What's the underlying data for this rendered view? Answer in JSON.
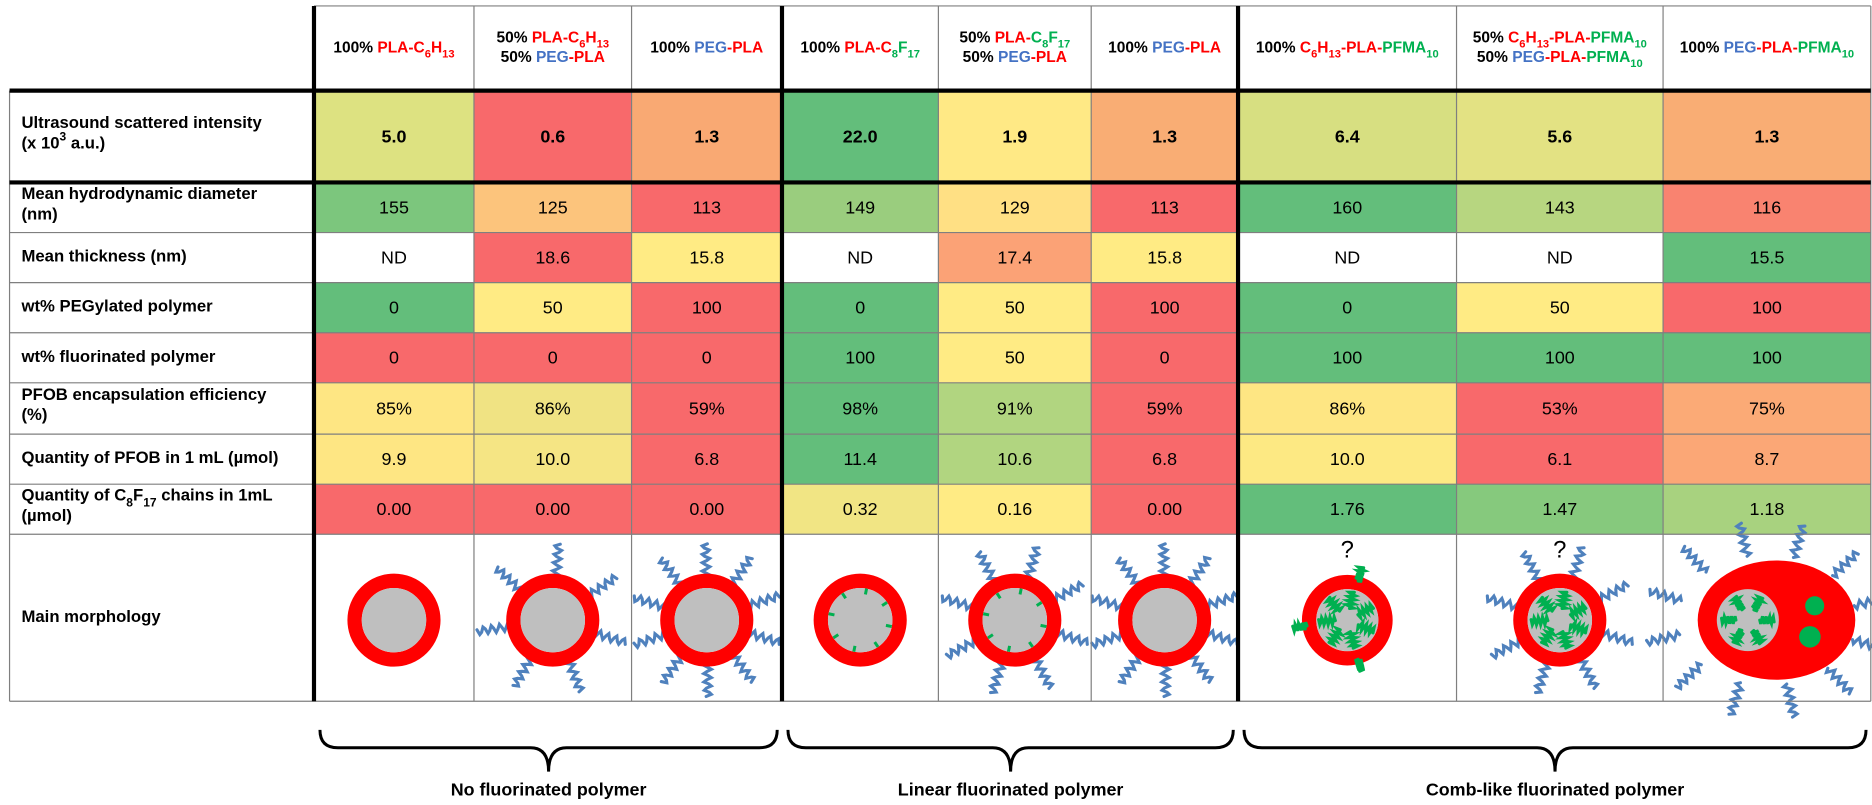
{
  "table": {
    "columns": [
      {
        "lines": [
          [
            [
              "100% "
            ],
            [
              "PLA-C",
              "#ff0000"
            ],
            [
              "6",
              "#ff0000",
              "sub"
            ],
            [
              "H",
              "#ff0000"
            ],
            [
              "13",
              "#ff0000",
              "sub"
            ]
          ]
        ]
      },
      {
        "lines": [
          [
            [
              "50% "
            ],
            [
              "PLA-C",
              "#ff0000"
            ],
            [
              "6",
              "#ff0000",
              "sub"
            ],
            [
              "H",
              "#ff0000"
            ],
            [
              "13",
              "#ff0000",
              "sub"
            ]
          ],
          [
            [
              "50% "
            ],
            [
              "PEG",
              "#4472c4"
            ],
            [
              "-PLA",
              "#ff0000"
            ]
          ]
        ]
      },
      {
        "lines": [
          [
            [
              "100% "
            ],
            [
              "PEG",
              "#4472c4"
            ],
            [
              "-PLA",
              "#ff0000"
            ]
          ]
        ]
      },
      {
        "lines": [
          [
            [
              "100% "
            ],
            [
              "PLA-C",
              "#ff0000"
            ],
            [
              "8",
              "#00b050",
              "sub"
            ],
            [
              "F",
              "#00b050"
            ],
            [
              "17",
              "#00b050",
              "sub"
            ]
          ]
        ]
      },
      {
        "lines": [
          [
            [
              "50% "
            ],
            [
              "PLA-",
              "#ff0000"
            ],
            [
              "C",
              "#00b050"
            ],
            [
              "8",
              "#00b050",
              "sub"
            ],
            [
              "F",
              "#00b050"
            ],
            [
              "17",
              "#00b050",
              "sub"
            ]
          ],
          [
            [
              "50% "
            ],
            [
              "PEG",
              "#4472c4"
            ],
            [
              "-PLA",
              "#ff0000"
            ]
          ]
        ]
      },
      {
        "lines": [
          [
            [
              "100% "
            ],
            [
              "PEG",
              "#4472c4"
            ],
            [
              "-PLA",
              "#ff0000"
            ]
          ]
        ]
      },
      {
        "lines": [
          [
            [
              "100% "
            ],
            [
              "C",
              "#ff0000"
            ],
            [
              "6",
              "#ff0000",
              "sub"
            ],
            [
              "H",
              "#ff0000"
            ],
            [
              "13",
              "#ff0000",
              "sub"
            ],
            [
              "-PLA-",
              "#ff0000"
            ],
            [
              "PFMA",
              "#00b050"
            ],
            [
              "10",
              "#00b050",
              "sub"
            ]
          ]
        ]
      },
      {
        "lines": [
          [
            [
              "50% "
            ],
            [
              "C",
              "#ff0000"
            ],
            [
              "6",
              "#ff0000",
              "sub"
            ],
            [
              "H",
              "#ff0000"
            ],
            [
              "13",
              "#ff0000",
              "sub"
            ],
            [
              "-PLA-",
              "#ff0000"
            ],
            [
              "PFMA",
              "#00b050"
            ],
            [
              "10",
              "#00b050",
              "sub"
            ]
          ],
          [
            [
              "50% "
            ],
            [
              "PEG",
              "#4472c4"
            ],
            [
              "-PLA-",
              "#ff0000"
            ],
            [
              "PFMA",
              "#00b050"
            ],
            [
              "10",
              "#00b050",
              "sub"
            ]
          ]
        ]
      },
      {
        "lines": [
          [
            [
              "100% "
            ],
            [
              "PEG",
              "#4472c4"
            ],
            [
              "-PLA-",
              "#ff0000"
            ],
            [
              "PFMA",
              "#00b050"
            ],
            [
              "10",
              "#00b050",
              "sub"
            ]
          ]
        ]
      }
    ],
    "rows": [
      {
        "label": [
          [
            [
              "Ultrasound scattered intensity"
            ]
          ],
          [
            [
              "(x 10"
            ],
            [
              "3",
              "#000",
              "super"
            ],
            [
              " a.u.)"
            ]
          ]
        ],
        "bold": true,
        "cells": [
          "5.0",
          "0.6",
          "1.3",
          "22.0",
          "1.9",
          "1.3",
          "6.4",
          "5.6",
          "1.3"
        ],
        "colors": [
          "#dde281",
          "#f8696b",
          "#f9a973",
          "#63be7b",
          "#ffe985",
          "#f9ad74",
          "#d7df81",
          "#e3e283",
          "#f9ad74"
        ]
      },
      {
        "label": [
          [
            [
              "Mean hydrodynamic diameter"
            ]
          ],
          [
            [
              "(nm)"
            ]
          ]
        ],
        "cells": [
          "155",
          "125",
          "113",
          "149",
          "129",
          "113",
          "160",
          "143",
          "116"
        ],
        "colors": [
          "#7cc67d",
          "#fcc47c",
          "#f8696b",
          "#9acd7e",
          "#ffe084",
          "#f8696b",
          "#63be7b",
          "#b7d680",
          "#f98370"
        ]
      },
      {
        "label": [
          [
            [
              "Mean thickness (nm)"
            ]
          ]
        ],
        "cells": [
          "ND",
          "18.6",
          "15.8",
          "ND",
          "17.4",
          "15.8",
          "ND",
          "ND",
          "15.5"
        ],
        "colors": [
          "#ffffff",
          "#f8696b",
          "#ffeb84",
          "#ffffff",
          "#fba276",
          "#ffeb84",
          "#ffffff",
          "#ffffff",
          "#63be7b"
        ]
      },
      {
        "label": [
          [
            [
              "wt% PEGylated polymer"
            ]
          ]
        ],
        "cells": [
          "0",
          "50",
          "100",
          "0",
          "50",
          "100",
          "0",
          "50",
          "100"
        ],
        "colors": [
          "#63be7b",
          "#ffeb84",
          "#f8696b",
          "#63be7b",
          "#ffeb84",
          "#f8696b",
          "#63be7b",
          "#ffeb84",
          "#f8696b"
        ]
      },
      {
        "label": [
          [
            [
              "wt% fluorinated polymer"
            ]
          ]
        ],
        "cells": [
          "0",
          "0",
          "0",
          "100",
          "50",
          "0",
          "100",
          "100",
          "100"
        ],
        "colors": [
          "#f8696b",
          "#f8696b",
          "#f8696b",
          "#63be7b",
          "#ffeb84",
          "#f8696b",
          "#63be7b",
          "#63be7b",
          "#63be7b"
        ]
      },
      {
        "label": [
          [
            [
              "PFOB encapsulation efficiency"
            ]
          ],
          [
            [
              "(%)"
            ]
          ]
        ],
        "cells": [
          "85%",
          "86%",
          "59%",
          "98%",
          "91%",
          "59%",
          "86%",
          "53%",
          "75%"
        ],
        "colors": [
          "#fee683",
          "#f0e383",
          "#f8696b",
          "#63be7b",
          "#b1d580",
          "#f8696b",
          "#fee683",
          "#f8696b",
          "#fbaa76"
        ]
      },
      {
        "label": [
          [
            [
              "Quantity of PFOB in 1 mL (µmol)"
            ]
          ]
        ],
        "cells": [
          "9.9",
          "10.0",
          "6.8",
          "11.4",
          "10.6",
          "6.8",
          "10.0",
          "6.1",
          "8.7"
        ],
        "colors": [
          "#fee683",
          "#f5e584",
          "#f8696b",
          "#63be7b",
          "#b1d580",
          "#f8696b",
          "#fde983",
          "#f8696b",
          "#fba776"
        ]
      },
      {
        "label": [
          [
            [
              "Quantity of C"
            ],
            [
              "8",
              "#000",
              "sub"
            ],
            [
              "F"
            ],
            [
              "17",
              "#000",
              "sub"
            ],
            [
              " chains in 1mL"
            ]
          ],
          [
            [
              "(µmol)"
            ]
          ]
        ],
        "cells": [
          "0.00",
          "0.00",
          "0.00",
          "0.32",
          "0.16",
          "0.00",
          "1.76",
          "1.47",
          "1.18"
        ],
        "colors": [
          "#f8696b",
          "#f8696b",
          "#f8696b",
          "#f1e584",
          "#ffeb84",
          "#f8696b",
          "#63be7b",
          "#86c97d",
          "#a8d27f"
        ]
      }
    ],
    "morphology": {
      "label": "Main morphology",
      "notes": [
        null,
        null,
        null,
        null,
        null,
        null,
        "?",
        "?",
        null
      ]
    }
  },
  "groups": [
    "No fluorinated polymer",
    "Linear fluorinated polymer",
    "Comb-like fluorinated polymer"
  ]
}
